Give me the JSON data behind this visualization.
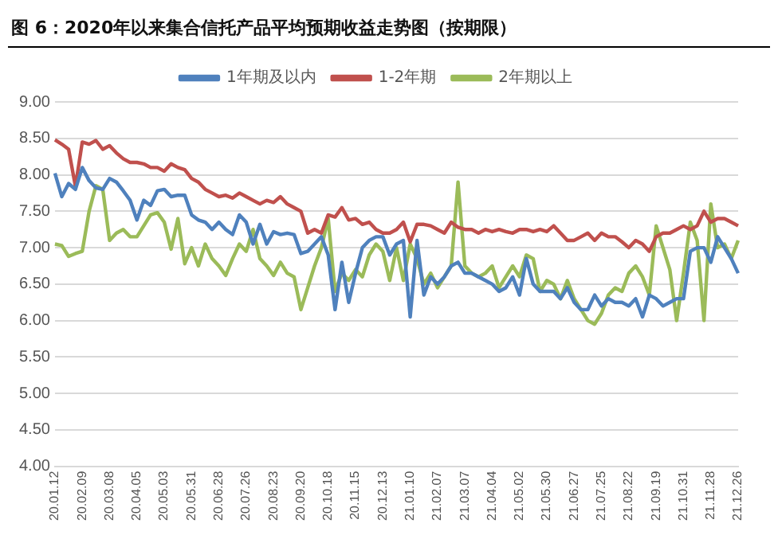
{
  "chart_data": {
    "type": "line",
    "title": "图 6：2020年以来集合信托产品平均预期收益走势图（按期限）",
    "categories": [
      "20.01.12",
      null,
      null,
      null,
      "20.02.09",
      null,
      null,
      null,
      "20.03.08",
      null,
      null,
      null,
      "20.04.05",
      null,
      null,
      null,
      "20.05.03",
      null,
      null,
      null,
      "20.05.31",
      null,
      null,
      null,
      "20.06.28",
      null,
      null,
      null,
      "20.07.26",
      null,
      null,
      null,
      "20.08.23",
      null,
      null,
      null,
      "20.09.20",
      null,
      null,
      null,
      "20.10.18",
      null,
      null,
      null,
      "20.11.15",
      null,
      null,
      null,
      "20.12.13",
      null,
      null,
      null,
      "21.01.10",
      null,
      null,
      null,
      "21.02.07",
      null,
      null,
      null,
      "21.03.07",
      null,
      null,
      null,
      "21.04.04",
      null,
      null,
      null,
      "21.05.02",
      null,
      null,
      null,
      "21.05.30",
      null,
      null,
      null,
      "21.06.27",
      null,
      null,
      null,
      "21.07.25",
      null,
      null,
      null,
      "21.08.22",
      null,
      null,
      null,
      "21.09.19",
      null,
      null,
      null,
      "21.10.31",
      null,
      null,
      null,
      "21.11.28",
      null,
      null,
      null,
      "21.12.26"
    ],
    "series": [
      {
        "name": "1年期及以内",
        "color": "#4f81bd",
        "values": [
          8.02,
          7.7,
          7.88,
          7.8,
          8.1,
          7.92,
          7.82,
          7.8,
          7.95,
          7.9,
          7.78,
          7.65,
          7.38,
          7.65,
          7.58,
          7.78,
          7.8,
          7.7,
          7.72,
          7.72,
          7.45,
          7.38,
          7.35,
          7.25,
          7.35,
          7.25,
          7.18,
          7.45,
          7.35,
          7.05,
          7.32,
          7.05,
          7.22,
          7.18,
          7.2,
          7.18,
          6.92,
          6.95,
          7.05,
          7.15,
          6.9,
          6.15,
          6.8,
          6.25,
          6.65,
          7.0,
          7.1,
          7.15,
          7.15,
          6.9,
          7.05,
          7.1,
          6.05,
          7.1,
          6.35,
          6.6,
          6.5,
          6.6,
          6.75,
          6.8,
          6.65,
          6.65,
          6.6,
          6.55,
          6.5,
          6.4,
          6.45,
          6.6,
          6.35,
          6.85,
          6.5,
          6.4,
          6.4,
          6.4,
          6.3,
          6.45,
          6.25,
          6.15,
          6.15,
          6.35,
          6.2,
          6.3,
          6.25,
          6.25,
          6.2,
          6.3,
          6.05,
          6.35,
          6.3,
          6.2,
          6.25,
          6.3,
          6.3,
          6.95,
          7.0,
          7.0,
          6.8,
          7.15,
          7.0,
          6.85,
          6.65
        ]
      },
      {
        "name": "1-2年期",
        "color": "#c0504d",
        "values": [
          8.48,
          8.42,
          8.35,
          7.84,
          8.45,
          8.42,
          8.47,
          8.35,
          8.4,
          8.3,
          8.22,
          8.17,
          8.17,
          8.15,
          8.1,
          8.1,
          8.05,
          8.15,
          8.1,
          8.07,
          7.95,
          7.9,
          7.8,
          7.75,
          7.7,
          7.72,
          7.68,
          7.75,
          7.7,
          7.65,
          7.6,
          7.65,
          7.62,
          7.7,
          7.6,
          7.55,
          7.5,
          7.2,
          7.25,
          7.2,
          7.45,
          7.42,
          7.55,
          7.38,
          7.4,
          7.32,
          7.35,
          7.25,
          7.2,
          7.2,
          7.25,
          7.35,
          7.08,
          7.32,
          7.32,
          7.3,
          7.25,
          7.2,
          7.35,
          7.28,
          7.25,
          7.25,
          7.2,
          7.25,
          7.22,
          7.25,
          7.22,
          7.2,
          7.25,
          7.25,
          7.22,
          7.25,
          7.22,
          7.3,
          7.2,
          7.1,
          7.1,
          7.15,
          7.2,
          7.1,
          7.2,
          7.15,
          7.15,
          7.08,
          7.0,
          7.1,
          7.05,
          6.95,
          7.15,
          7.2,
          7.2,
          7.25,
          7.3,
          7.25,
          7.3,
          7.5,
          7.35,
          7.4,
          7.4,
          7.35,
          7.3
        ]
      },
      {
        "name": "2年期以上",
        "color": "#9bbb59",
        "values": [
          7.05,
          7.03,
          6.88,
          6.92,
          6.95,
          7.5,
          7.85,
          7.8,
          7.1,
          7.2,
          7.25,
          7.15,
          7.15,
          7.3,
          7.45,
          7.48,
          7.35,
          6.98,
          7.4,
          6.78,
          7.0,
          6.75,
          7.05,
          6.85,
          6.75,
          6.62,
          6.85,
          7.05,
          6.95,
          7.25,
          6.85,
          6.75,
          6.62,
          6.8,
          6.65,
          6.6,
          6.15,
          6.45,
          6.75,
          7.0,
          7.4,
          6.4,
          6.65,
          6.55,
          6.7,
          6.6,
          6.9,
          7.05,
          6.95,
          6.55,
          7.0,
          6.55,
          7.05,
          6.85,
          6.5,
          6.65,
          6.45,
          6.6,
          6.75,
          7.9,
          6.75,
          6.65,
          6.6,
          6.65,
          6.75,
          6.45,
          6.6,
          6.75,
          6.6,
          6.9,
          6.85,
          6.4,
          6.55,
          6.5,
          6.3,
          6.55,
          6.3,
          6.15,
          6.0,
          5.95,
          6.1,
          6.35,
          6.45,
          6.4,
          6.65,
          6.75,
          6.6,
          6.35,
          7.3,
          7.0,
          6.7,
          6.0,
          6.65,
          7.35,
          7.1,
          6.0,
          7.6,
          7.0,
          7.05,
          6.85,
          7.1
        ]
      }
    ],
    "ylim": [
      4,
      9
    ],
    "yticks": [
      {
        "value": 4,
        "label": "4.00"
      },
      {
        "value": 4.5,
        "label": "4.50"
      },
      {
        "value": 5,
        "label": "5.00"
      },
      {
        "value": 5.5,
        "label": "5.50"
      },
      {
        "value": 6,
        "label": "6.00"
      },
      {
        "value": 6.5,
        "label": "6.50"
      },
      {
        "value": 7,
        "label": "7.00"
      },
      {
        "value": 7.5,
        "label": "7.50"
      },
      {
        "value": 8,
        "label": "8.00"
      },
      {
        "value": 8.5,
        "label": "8.50"
      },
      {
        "value": 9,
        "label": "9.00"
      }
    ],
    "grid": "y",
    "legend": "top",
    "marker": "none",
    "line_style": "solid"
  }
}
